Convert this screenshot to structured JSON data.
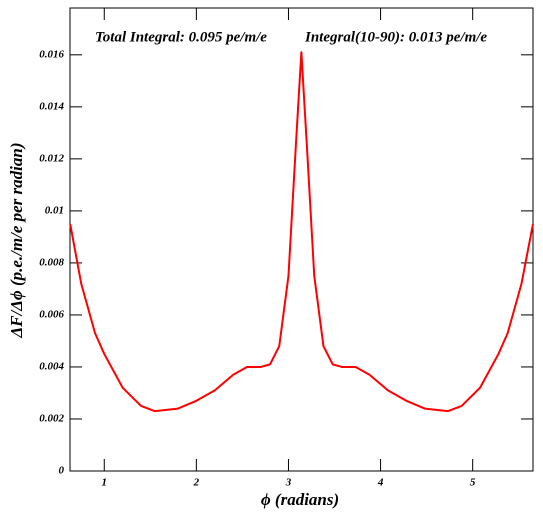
{
  "chart_data": {
    "type": "line",
    "annotations": [
      "Total Integral: 0.095 pe/m/e",
      "Integral(10-90): 0.013 pe/m/e"
    ],
    "x_label": "ϕ (radians)",
    "y_label": "ΔF/Δϕ (p.e./m/e per radian)",
    "x": [
      0.63,
      0.75,
      0.9,
      1.0,
      1.2,
      1.4,
      1.55,
      1.8,
      2.0,
      2.2,
      2.4,
      2.55,
      2.7,
      2.8,
      2.9,
      3.0,
      3.08,
      3.14,
      3.2,
      3.28,
      3.38,
      3.48,
      3.58,
      3.73,
      3.88,
      4.08,
      4.28,
      4.48,
      4.73,
      4.88,
      5.08,
      5.28,
      5.38,
      5.53,
      5.655
    ],
    "series": [
      {
        "color": "#ff0000",
        "values": [
          0.0095,
          0.0072,
          0.0053,
          0.0045,
          0.0032,
          0.0025,
          0.0023,
          0.0024,
          0.0027,
          0.0031,
          0.0037,
          0.004,
          0.004,
          0.0041,
          0.0048,
          0.0075,
          0.0125,
          0.0161,
          0.0125,
          0.0075,
          0.0048,
          0.0041,
          0.004,
          0.004,
          0.0037,
          0.0031,
          0.0027,
          0.0024,
          0.0023,
          0.0025,
          0.0032,
          0.0045,
          0.0053,
          0.0072,
          0.0095
        ]
      }
    ],
    "xlim": [
      0.628,
      5.655
    ],
    "xticks": [
      1,
      2,
      3,
      4,
      5
    ],
    "ylim": [
      0,
      0.0178
    ],
    "yticks": [
      0,
      0.002,
      0.004,
      0.006,
      0.008,
      0.01,
      0.012,
      0.014,
      0.016
    ]
  }
}
